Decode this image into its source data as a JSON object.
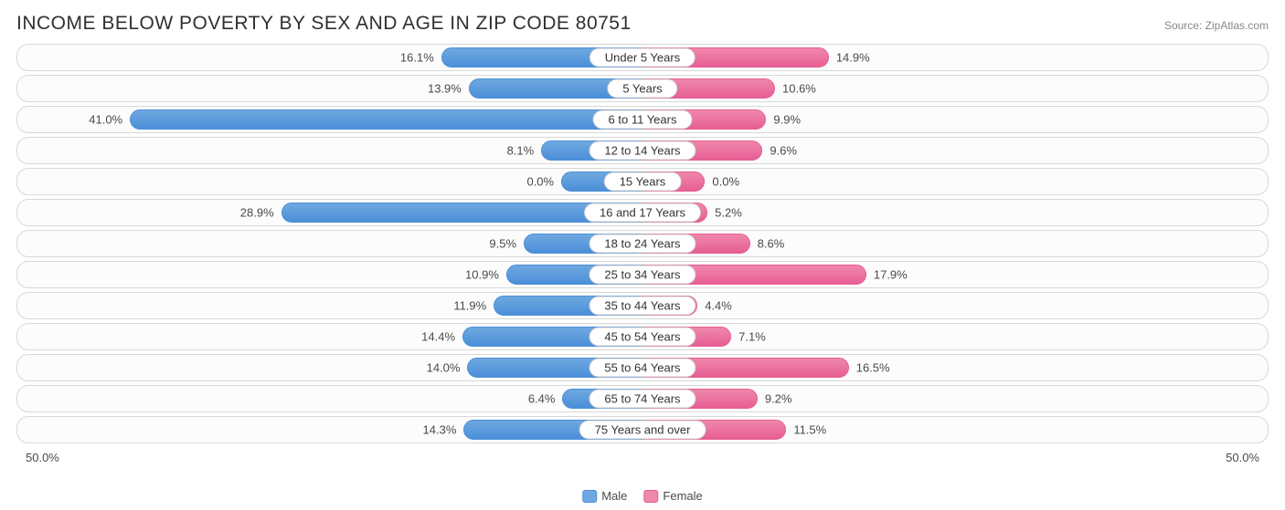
{
  "title": "INCOME BELOW POVERTY BY SEX AND AGE IN ZIP CODE 80751",
  "source": "Source: ZipAtlas.com",
  "axis_max_pct": 50.0,
  "axis_label_left": "50.0%",
  "axis_label_right": "50.0%",
  "colors": {
    "male_fill": "#6fa8e0",
    "male_stroke": "#4b8fd8",
    "female_fill": "#ef87ac",
    "female_stroke": "#e75e93",
    "row_border": "#d8d8d8",
    "text": "#4a4a4a",
    "title_text": "#303030",
    "source_text": "#888888",
    "background": "#ffffff"
  },
  "legend": {
    "male": "Male",
    "female": "Female"
  },
  "rows": [
    {
      "category": "Under 5 Years",
      "male": 16.1,
      "female": 14.9,
      "male_label": "16.1%",
      "female_label": "14.9%"
    },
    {
      "category": "5 Years",
      "male": 13.9,
      "female": 10.6,
      "male_label": "13.9%",
      "female_label": "10.6%"
    },
    {
      "category": "6 to 11 Years",
      "male": 41.0,
      "female": 9.9,
      "male_label": "41.0%",
      "female_label": "9.9%"
    },
    {
      "category": "12 to 14 Years",
      "male": 8.1,
      "female": 9.6,
      "male_label": "8.1%",
      "female_label": "9.6%"
    },
    {
      "category": "15 Years",
      "male": 0.0,
      "female": 0.0,
      "male_label": "0.0%",
      "female_label": "0.0%",
      "male_min": 6.5,
      "female_min": 5.0
    },
    {
      "category": "16 and 17 Years",
      "male": 28.9,
      "female": 5.2,
      "male_label": "28.9%",
      "female_label": "5.2%"
    },
    {
      "category": "18 to 24 Years",
      "male": 9.5,
      "female": 8.6,
      "male_label": "9.5%",
      "female_label": "8.6%"
    },
    {
      "category": "25 to 34 Years",
      "male": 10.9,
      "female": 17.9,
      "male_label": "10.9%",
      "female_label": "17.9%"
    },
    {
      "category": "35 to 44 Years",
      "male": 11.9,
      "female": 4.4,
      "male_label": "11.9%",
      "female_label": "4.4%"
    },
    {
      "category": "45 to 54 Years",
      "male": 14.4,
      "female": 7.1,
      "male_label": "14.4%",
      "female_label": "7.1%"
    },
    {
      "category": "55 to 64 Years",
      "male": 14.0,
      "female": 16.5,
      "male_label": "14.0%",
      "female_label": "16.5%"
    },
    {
      "category": "65 to 74 Years",
      "male": 6.4,
      "female": 9.2,
      "male_label": "6.4%",
      "female_label": "9.2%"
    },
    {
      "category": "75 Years and over",
      "male": 14.3,
      "female": 11.5,
      "male_label": "14.3%",
      "female_label": "11.5%"
    }
  ]
}
